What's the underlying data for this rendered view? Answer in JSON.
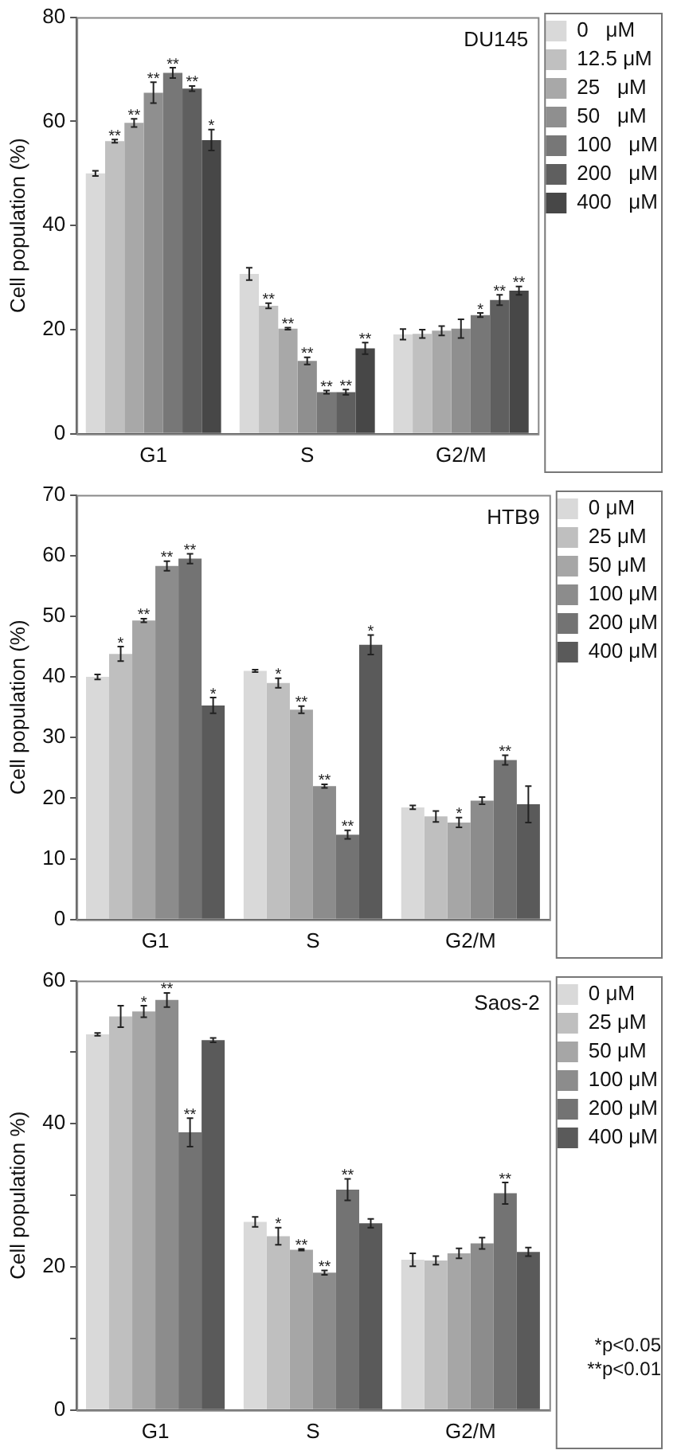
{
  "chart_data": [
    {
      "type": "bar",
      "title": "DU145",
      "ylabel": "Cell population (%)",
      "categories": [
        "G1",
        "S",
        "G2/M"
      ],
      "ylim": [
        0,
        80
      ],
      "yticks": [
        0,
        20,
        40,
        60,
        80
      ],
      "grid": false,
      "legend": "top right",
      "series": [
        {
          "name": "0   μM",
          "color": "#d9d9d9",
          "values": [
            50.0,
            30.7,
            19.1
          ],
          "errors": [
            0.5,
            1.2,
            1.0
          ],
          "value_labels": [
            null,
            null,
            null
          ]
        },
        {
          "name": "12.5 μM",
          "color": "#c0c0c0",
          "values": [
            56.2,
            24.6,
            19.2
          ],
          "errors": [
            0.3,
            0.5,
            0.8
          ],
          "value_labels": [
            "**",
            "**",
            null
          ]
        },
        {
          "name": "25   μM",
          "color": "#a8a8a8",
          "values": [
            59.7,
            20.2,
            19.8
          ],
          "errors": [
            0.8,
            0.2,
            0.9
          ],
          "value_labels": [
            "**",
            "**",
            null
          ]
        },
        {
          "name": "50   μM",
          "color": "#8f8f8f",
          "values": [
            65.5,
            14.0,
            20.2
          ],
          "errors": [
            2.0,
            0.7,
            1.8
          ],
          "value_labels": [
            "**",
            "**",
            null
          ]
        },
        {
          "name": "100   μM",
          "color": "#777777",
          "values": [
            69.3,
            8.0,
            22.8
          ],
          "errors": [
            1.0,
            0.3,
            0.4
          ],
          "value_labels": [
            "**",
            "**",
            "*"
          ]
        },
        {
          "name": "200   μM",
          "color": "#5f5f5f",
          "values": [
            66.3,
            8.0,
            25.7
          ],
          "errors": [
            0.5,
            0.5,
            1.0
          ],
          "value_labels": [
            "**",
            "**",
            "**"
          ]
        },
        {
          "name": "400   μM",
          "color": "#474747",
          "values": [
            56.4,
            16.4,
            27.5
          ],
          "errors": [
            2.0,
            1.1,
            0.8
          ],
          "value_labels": [
            "*",
            "**",
            "**"
          ]
        }
      ]
    },
    {
      "type": "bar",
      "title": "HTB9",
      "ylabel": "Cell population (%)",
      "categories": [
        "G1",
        "S",
        "G2/M"
      ],
      "ylim": [
        0,
        70
      ],
      "yticks": [
        0,
        10,
        20,
        30,
        40,
        50,
        60,
        70
      ],
      "grid": false,
      "legend": "top right",
      "series": [
        {
          "name": "0 μM",
          "color": "#d9d9d9",
          "values": [
            40.0,
            41.0,
            18.5
          ],
          "errors": [
            0.4,
            0.2,
            0.3
          ],
          "value_labels": [
            null,
            null,
            null
          ]
        },
        {
          "name": "25 μM",
          "color": "#bfbfbf",
          "values": [
            43.8,
            39.0,
            17.0
          ],
          "errors": [
            1.2,
            0.8,
            0.9
          ],
          "value_labels": [
            "*",
            "*",
            null
          ]
        },
        {
          "name": "50 μM",
          "color": "#a6a6a6",
          "values": [
            49.3,
            34.6,
            16.0
          ],
          "errors": [
            0.3,
            0.6,
            0.8
          ],
          "value_labels": [
            "**",
            "**",
            "*"
          ]
        },
        {
          "name": "100 μM",
          "color": "#8c8c8c",
          "values": [
            58.3,
            22.0,
            19.6
          ],
          "errors": [
            0.8,
            0.3,
            0.6
          ],
          "value_labels": [
            "**",
            "**",
            null
          ]
        },
        {
          "name": "200 μM",
          "color": "#737373",
          "values": [
            59.5,
            14.0,
            26.3
          ],
          "errors": [
            0.8,
            0.7,
            0.8
          ],
          "value_labels": [
            "**",
            "**",
            "**"
          ]
        },
        {
          "name": "400 μM",
          "color": "#5a5a5a",
          "values": [
            35.3,
            45.3,
            19.0
          ],
          "errors": [
            1.3,
            1.6,
            3.0
          ],
          "value_labels": [
            "*",
            "*",
            null
          ]
        }
      ]
    },
    {
      "type": "bar",
      "title": "Saos-2",
      "ylabel": "Cell population %)",
      "categories": [
        "G1",
        "S",
        "G2/M"
      ],
      "ylim": [
        0,
        60
      ],
      "yticks": [
        0,
        {
          "value": 10,
          "label": null
        },
        20,
        {
          "value": 30,
          "label": null
        },
        40,
        {
          "value": 50,
          "label": null
        },
        60
      ],
      "grid": false,
      "legend": "top right",
      "annotations": [
        "*p<0.05",
        "**p<0.01"
      ],
      "series": [
        {
          "name": "0 μM",
          "color": "#d9d9d9",
          "values": [
            52.5,
            26.3,
            21.0
          ],
          "errors": [
            0.2,
            0.7,
            0.9
          ],
          "value_labels": [
            null,
            null,
            null
          ]
        },
        {
          "name": "25 μM",
          "color": "#bfbfbf",
          "values": [
            55.0,
            24.3,
            20.9
          ],
          "errors": [
            1.5,
            1.2,
            0.6
          ],
          "value_labels": [
            null,
            "*",
            null
          ]
        },
        {
          "name": "50 μM",
          "color": "#a6a6a6",
          "values": [
            55.7,
            22.4,
            21.9
          ],
          "errors": [
            0.8,
            0.1,
            0.7
          ],
          "value_labels": [
            "*",
            "**",
            null
          ]
        },
        {
          "name": "100 μM",
          "color": "#8c8c8c",
          "values": [
            57.3,
            19.2,
            23.3
          ],
          "errors": [
            1.0,
            0.3,
            0.8
          ],
          "value_labels": [
            "**",
            "**",
            null
          ]
        },
        {
          "name": "200 μM",
          "color": "#737373",
          "values": [
            38.8,
            30.8,
            30.3
          ],
          "errors": [
            2.0,
            1.5,
            1.5
          ],
          "value_labels": [
            "**",
            "**",
            "**"
          ]
        },
        {
          "name": "400 μM",
          "color": "#5a5a5a",
          "values": [
            51.7,
            26.1,
            22.1
          ],
          "errors": [
            0.3,
            0.6,
            0.6
          ],
          "value_labels": [
            null,
            null,
            null
          ]
        }
      ]
    }
  ]
}
